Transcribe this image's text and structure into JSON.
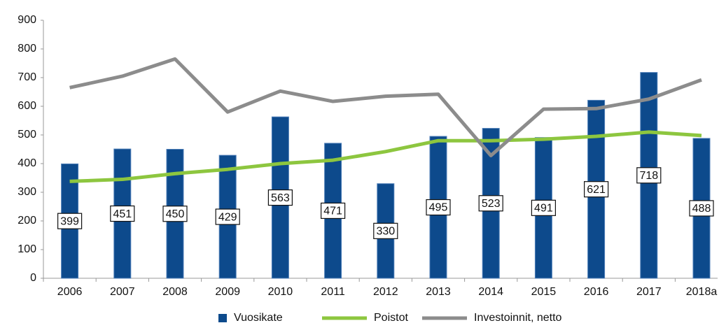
{
  "chart_data": {
    "type": "bar",
    "categories": [
      "2006",
      "2007",
      "2008",
      "2009",
      "2010",
      "2011",
      "2012",
      "2013",
      "2014",
      "2015",
      "2016",
      "2017",
      "2018a"
    ],
    "series": [
      {
        "name": "Vuosikate",
        "type": "bar",
        "color": "#0d4a8c",
        "values": [
          399,
          451,
          450,
          429,
          563,
          471,
          330,
          495,
          523,
          491,
          621,
          718,
          488
        ]
      },
      {
        "name": "Poistot",
        "type": "line",
        "color": "#8dc63f",
        "values": [
          338,
          345,
          365,
          380,
          400,
          412,
          442,
          480,
          480,
          485,
          495,
          510,
          498
        ]
      },
      {
        "name": "Investoinnit, netto",
        "type": "line",
        "color": "#8c8c8c",
        "values": [
          665,
          705,
          765,
          580,
          653,
          617,
          635,
          642,
          428,
          590,
          592,
          625,
          692
        ]
      }
    ],
    "ylim": [
      0,
      900
    ],
    "yticks": [
      0,
      100,
      200,
      300,
      400,
      500,
      600,
      700,
      800,
      900
    ],
    "grid": false,
    "legend": "bottom"
  }
}
